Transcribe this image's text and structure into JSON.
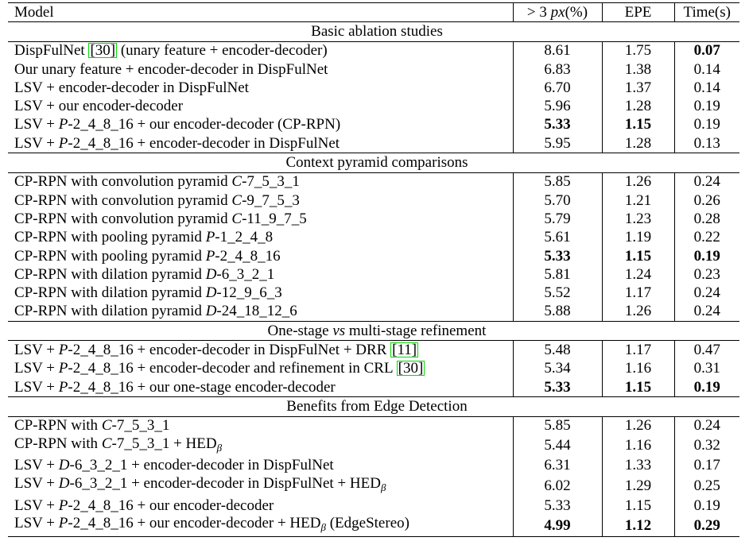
{
  "header": [
    [
      {
        "text": "Model"
      }
    ],
    [
      {
        "text": "> 3 "
      },
      {
        "text": "px",
        "style": "italic"
      },
      {
        "text": "(%)"
      }
    ],
    [
      {
        "text": "EPE"
      }
    ],
    [
      {
        "text": "Time(s)"
      }
    ]
  ],
  "sections": [
    {
      "title": [
        {
          "text": "Basic ablation studies"
        }
      ],
      "rows": [
        {
          "model": [
            {
              "text": "DispFulNet "
            },
            {
              "text": "[30]",
              "style": "cite"
            },
            {
              "text": " (unary feature + encoder-decoder)"
            }
          ],
          "values": [
            "8.61",
            "1.75",
            "0.07"
          ],
          "bold": [
            false,
            false,
            true
          ]
        },
        {
          "model": [
            {
              "text": "Our unary feature + encoder-decoder in DispFulNet"
            }
          ],
          "values": [
            "6.83",
            "1.38",
            "0.14"
          ],
          "bold": [
            false,
            false,
            false
          ]
        },
        {
          "model": [
            {
              "text": "LSV + encoder-decoder in DispFulNet"
            }
          ],
          "values": [
            "6.70",
            "1.37",
            "0.14"
          ],
          "bold": [
            false,
            false,
            false
          ]
        },
        {
          "model": [
            {
              "text": "LSV + our encoder-decoder"
            }
          ],
          "values": [
            "5.96",
            "1.28",
            "0.19"
          ],
          "bold": [
            false,
            false,
            false
          ]
        },
        {
          "model": [
            {
              "text": "LSV + "
            },
            {
              "text": "P",
              "style": "italic"
            },
            {
              "text": "-2_4_8_16 + our encoder-decoder (CP-RPN)"
            }
          ],
          "values": [
            "5.33",
            "1.15",
            "0.19"
          ],
          "bold": [
            true,
            true,
            false
          ]
        },
        {
          "model": [
            {
              "text": "LSV + "
            },
            {
              "text": "P",
              "style": "italic"
            },
            {
              "text": "-2_4_8_16 + encoder-decoder in DispFulNet"
            }
          ],
          "values": [
            "5.95",
            "1.28",
            "0.13"
          ],
          "bold": [
            false,
            false,
            false
          ]
        }
      ]
    },
    {
      "title": [
        {
          "text": "Context pyramid comparisons"
        }
      ],
      "rows": [
        {
          "model": [
            {
              "text": "CP-RPN with convolution pyramid "
            },
            {
              "text": "C",
              "style": "italic"
            },
            {
              "text": "-7_5_3_1"
            }
          ],
          "values": [
            "5.85",
            "1.26",
            "0.24"
          ],
          "bold": [
            false,
            false,
            false
          ]
        },
        {
          "model": [
            {
              "text": "CP-RPN with convolution pyramid "
            },
            {
              "text": "C",
              "style": "italic"
            },
            {
              "text": "-9_7_5_3"
            }
          ],
          "values": [
            "5.70",
            "1.21",
            "0.26"
          ],
          "bold": [
            false,
            false,
            false
          ]
        },
        {
          "model": [
            {
              "text": "CP-RPN with convolution pyramid "
            },
            {
              "text": "C",
              "style": "italic"
            },
            {
              "text": "-11_9_7_5"
            }
          ],
          "values": [
            "5.79",
            "1.23",
            "0.28"
          ],
          "bold": [
            false,
            false,
            false
          ]
        },
        {
          "model": [
            {
              "text": "CP-RPN with pooling pyramid "
            },
            {
              "text": "P",
              "style": "italic"
            },
            {
              "text": "-1_2_4_8"
            }
          ],
          "values": [
            "5.61",
            "1.19",
            "0.22"
          ],
          "bold": [
            false,
            false,
            false
          ]
        },
        {
          "model": [
            {
              "text": "CP-RPN with pooling pyramid "
            },
            {
              "text": "P",
              "style": "italic"
            },
            {
              "text": "-2_4_8_16"
            }
          ],
          "values": [
            "5.33",
            "1.15",
            "0.19"
          ],
          "bold": [
            true,
            true,
            true
          ]
        },
        {
          "model": [
            {
              "text": "CP-RPN with dilation pyramid "
            },
            {
              "text": "D",
              "style": "italic"
            },
            {
              "text": "-6_3_2_1"
            }
          ],
          "values": [
            "5.81",
            "1.24",
            "0.23"
          ],
          "bold": [
            false,
            false,
            false
          ]
        },
        {
          "model": [
            {
              "text": "CP-RPN with dilation pyramid "
            },
            {
              "text": "D",
              "style": "italic"
            },
            {
              "text": "-12_9_6_3"
            }
          ],
          "values": [
            "5.52",
            "1.17",
            "0.24"
          ],
          "bold": [
            false,
            false,
            false
          ]
        },
        {
          "model": [
            {
              "text": "CP-RPN with dilation pyramid "
            },
            {
              "text": "D",
              "style": "italic"
            },
            {
              "text": "-24_18_12_6"
            }
          ],
          "values": [
            "5.88",
            "1.26",
            "0.24"
          ],
          "bold": [
            false,
            false,
            false
          ]
        }
      ]
    },
    {
      "title": [
        {
          "text": "One-stage "
        },
        {
          "text": "vs",
          "style": "italic"
        },
        {
          "text": " multi-stage refinement"
        }
      ],
      "rows": [
        {
          "model": [
            {
              "text": "LSV + "
            },
            {
              "text": "P",
              "style": "italic"
            },
            {
              "text": "-2_4_8_16 + encoder-decoder in DispFulNet + DRR "
            },
            {
              "text": "[11]",
              "style": "cite"
            }
          ],
          "values": [
            "5.48",
            "1.17",
            "0.47"
          ],
          "bold": [
            false,
            false,
            false
          ]
        },
        {
          "model": [
            {
              "text": "LSV + "
            },
            {
              "text": "P",
              "style": "italic"
            },
            {
              "text": "-2_4_8_16 + encoder-decoder and refinement in CRL "
            },
            {
              "text": "[30]",
              "style": "cite"
            }
          ],
          "values": [
            "5.34",
            "1.16",
            "0.31"
          ],
          "bold": [
            false,
            false,
            false
          ]
        },
        {
          "model": [
            {
              "text": "LSV + "
            },
            {
              "text": "P",
              "style": "italic"
            },
            {
              "text": "-2_4_8_16 + our one-stage encoder-decoder"
            }
          ],
          "values": [
            "5.33",
            "1.15",
            "0.19"
          ],
          "bold": [
            true,
            true,
            true
          ]
        }
      ]
    },
    {
      "title": [
        {
          "text": "Benefits from Edge Detection"
        }
      ],
      "rows": [
        {
          "model": [
            {
              "text": "CP-RPN with "
            },
            {
              "text": "C",
              "style": "italic"
            },
            {
              "text": "-7_5_3_1"
            }
          ],
          "values": [
            "5.85",
            "1.26",
            "0.24"
          ],
          "bold": [
            false,
            false,
            false
          ]
        },
        {
          "model": [
            {
              "text": "CP-RPN with "
            },
            {
              "text": "C",
              "style": "italic"
            },
            {
              "text": "-7_5_3_1 + HED"
            },
            {
              "text": "β",
              "style": "sub"
            }
          ],
          "values": [
            "5.44",
            "1.16",
            "0.32"
          ],
          "bold": [
            false,
            false,
            false
          ]
        },
        {
          "model": [
            {
              "text": "LSV + "
            },
            {
              "text": "D",
              "style": "italic"
            },
            {
              "text": "-6_3_2_1 + encoder-decoder in DispFulNet"
            }
          ],
          "values": [
            "6.31",
            "1.33",
            "0.17"
          ],
          "bold": [
            false,
            false,
            false
          ]
        },
        {
          "model": [
            {
              "text": "LSV + "
            },
            {
              "text": "D",
              "style": "italic"
            },
            {
              "text": "-6_3_2_1 + encoder-decoder in DispFulNet + HED"
            },
            {
              "text": "β",
              "style": "sub"
            }
          ],
          "values": [
            "6.02",
            "1.29",
            "0.25"
          ],
          "bold": [
            false,
            false,
            false
          ]
        },
        {
          "model": [
            {
              "text": "LSV + "
            },
            {
              "text": "P",
              "style": "italic"
            },
            {
              "text": "-2_4_8_16 + our encoder-decoder"
            }
          ],
          "values": [
            "5.33",
            "1.15",
            "0.19"
          ],
          "bold": [
            false,
            false,
            false
          ]
        },
        {
          "model": [
            {
              "text": "LSV + "
            },
            {
              "text": "P",
              "style": "italic"
            },
            {
              "text": "-2_4_8_16 + our encoder-decoder + HED"
            },
            {
              "text": "β",
              "style": "sub"
            },
            {
              "text": " (EdgeStereo)"
            }
          ],
          "values": [
            "4.99",
            "1.12",
            "0.29"
          ],
          "bold": [
            true,
            true,
            true
          ]
        }
      ]
    }
  ]
}
